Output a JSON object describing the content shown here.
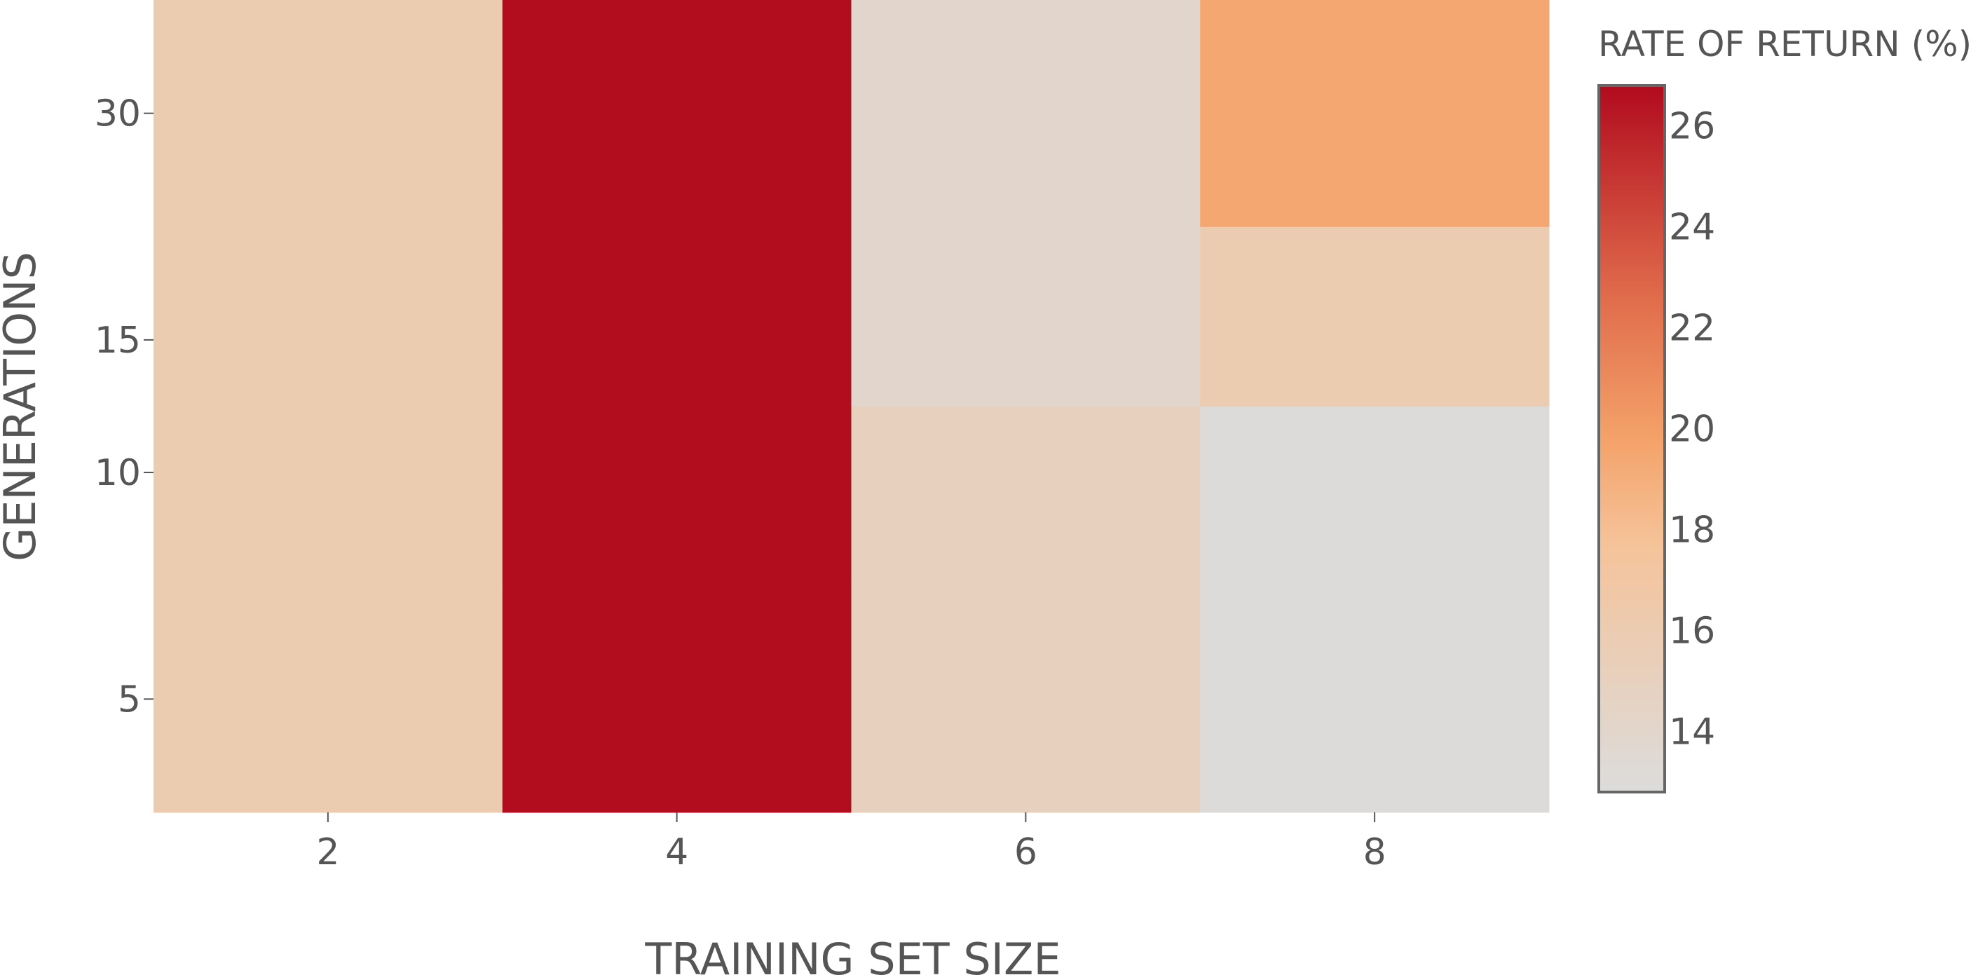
{
  "chart_data": {
    "type": "heatmap",
    "x": [
      2,
      4,
      6,
      8
    ],
    "y": [
      5,
      10,
      15,
      30
    ],
    "y_scale": "log",
    "xlabel": "TRAINING SET SIZE",
    "ylabel": "GENERATIONS",
    "z": [
      [
        16.0,
        26.7,
        15.0,
        13.0
      ],
      [
        16.0,
        26.7,
        15.0,
        13.0
      ],
      [
        16.0,
        26.7,
        14.0,
        16.0
      ],
      [
        16.0,
        26.7,
        14.0,
        19.5
      ]
    ],
    "colorbar": {
      "title": "RATE OF RETURN (%)",
      "range": [
        12.8,
        26.8
      ],
      "ticks": [
        14,
        16,
        18,
        20,
        22,
        24,
        26
      ],
      "colorscale": [
        [
          0.0,
          "#dcdcdc"
        ],
        [
          0.35,
          "#f5c39a"
        ],
        [
          0.5,
          "#f4a269"
        ],
        [
          0.7,
          "#e06c4c"
        ],
        [
          1.0,
          "#b10b1e"
        ]
      ]
    },
    "grid": false,
    "legend": "right"
  }
}
